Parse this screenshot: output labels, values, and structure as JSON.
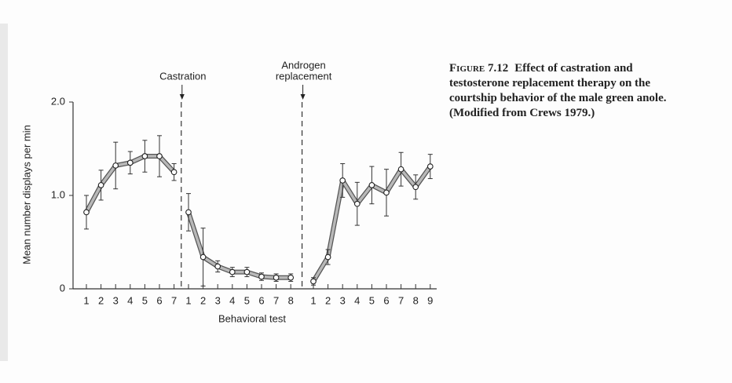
{
  "chart_data": {
    "type": "line",
    "x_label": "Behavioral test",
    "y_label": "Mean number displays per min",
    "ylim": [
      0,
      2
    ],
    "yticks": [
      0,
      {
        "value": 1,
        "label": "1.0"
      },
      {
        "value": 2,
        "label": "2.0"
      }
    ],
    "color": "#b8b8b8",
    "annotations": [
      {
        "text": [
          "Castration"
        ]
      },
      {
        "text": [
          "Androgen",
          "replacement"
        ]
      }
    ],
    "series": [
      {
        "categories": [
          "1",
          "2",
          "3",
          "4",
          "5",
          "6",
          "7"
        ],
        "values": [
          0.82,
          1.11,
          1.32,
          1.35,
          1.42,
          1.42,
          1.25
        ],
        "errors": [
          0.18,
          0.16,
          0.25,
          0.12,
          0.17,
          0.22,
          0.09
        ]
      },
      {
        "categories": [
          "1",
          "2",
          "3",
          "4",
          "5",
          "6",
          "7",
          "8"
        ],
        "values": [
          0.82,
          0.34,
          0.24,
          0.18,
          0.18,
          0.13,
          0.12,
          0.12
        ],
        "errors": [
          0.2,
          0.31,
          0.06,
          0.05,
          0.05,
          0.04,
          0.04,
          0.04
        ]
      },
      {
        "categories": [
          "1",
          "2",
          "3",
          "4",
          "5",
          "6",
          "7",
          "8",
          "9"
        ],
        "values": [
          0.08,
          0.34,
          1.16,
          0.91,
          1.11,
          1.03,
          1.28,
          1.09,
          1.31
        ],
        "errors": [
          0.04,
          0.08,
          0.18,
          0.23,
          0.2,
          0.25,
          0.18,
          0.13,
          0.13
        ]
      }
    ]
  },
  "caption": {
    "label": "Figure 7.12",
    "lines": [
      "Effect of castration and",
      "testosterone replacement therapy on the",
      "courtship behavior of the male green anole.",
      "(Modified from Crews 1979.)"
    ]
  }
}
